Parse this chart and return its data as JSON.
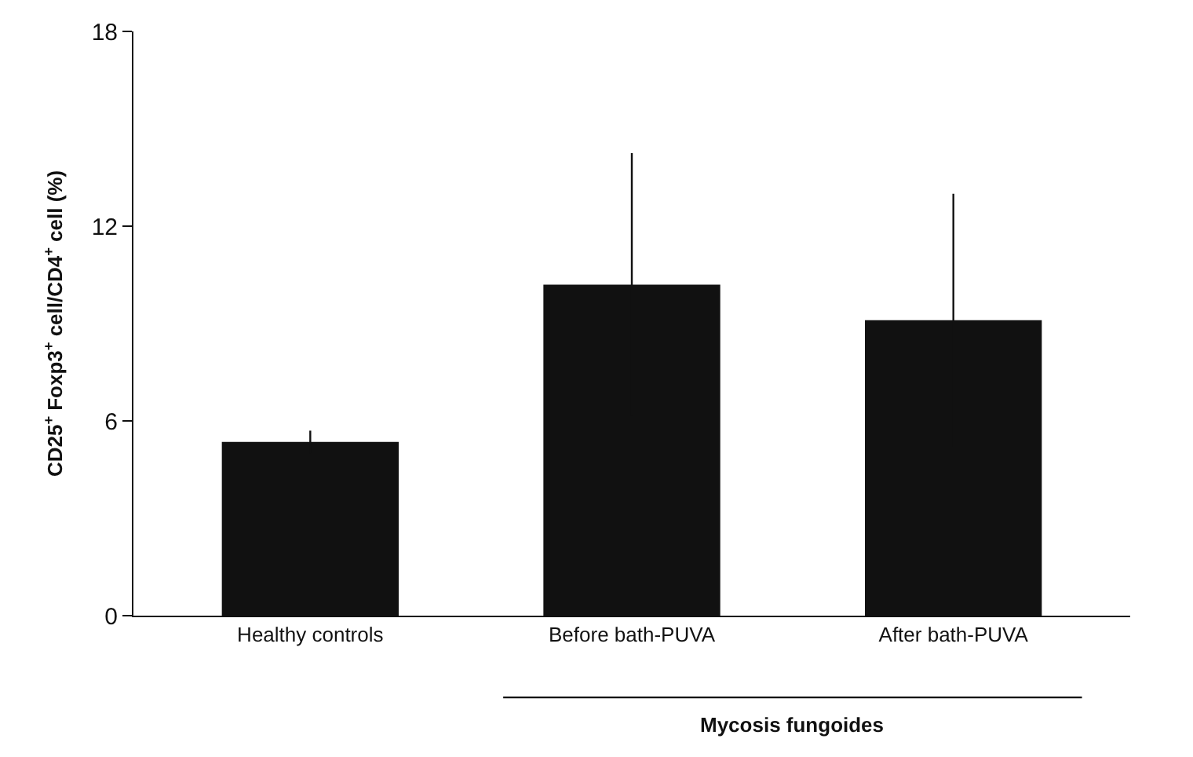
{
  "chart_data": {
    "type": "bar",
    "ylabel": "CD25$^{+}$ Foxp3$^{+}$ cell/CD4$^{+}$ cell (%)",
    "categories": [
      "Healthy controls",
      "Before bath-PUVA",
      "After bath-PUVA"
    ],
    "values": [
      5.35,
      10.2,
      9.1
    ],
    "errors": [
      0.35,
      4.05,
      3.9
    ],
    "color": "#111111",
    "ylim": [
      0,
      18
    ],
    "yticks": [
      0,
      6,
      12,
      18
    ],
    "annotations": [
      "Mycosis fungoides"
    ]
  }
}
